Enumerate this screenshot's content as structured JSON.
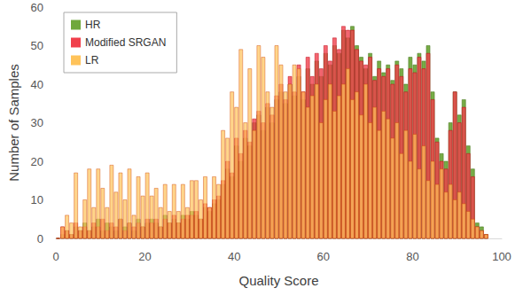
{
  "chart_data": {
    "type": "histogram",
    "x_label": "Quality Score",
    "y_label": "Number of Samples",
    "bins": [
      0,
      1,
      2,
      3,
      4,
      5,
      6,
      7,
      8,
      9,
      10,
      11,
      12,
      13,
      14,
      15,
      16,
      17,
      18,
      19,
      20,
      21,
      22,
      23,
      24,
      25,
      26,
      27,
      28,
      29,
      30,
      31,
      32,
      33,
      34,
      35,
      36,
      37,
      38,
      39,
      40,
      41,
      42,
      43,
      44,
      45,
      46,
      47,
      48,
      49,
      50,
      51,
      52,
      53,
      54,
      55,
      56,
      57,
      58,
      59,
      60,
      61,
      62,
      63,
      64,
      65,
      66,
      67,
      68,
      69,
      70,
      71,
      72,
      73,
      74,
      75,
      76,
      77,
      78,
      79,
      80,
      81,
      82,
      83,
      84,
      85,
      86,
      87,
      88,
      89,
      90,
      91,
      92,
      93,
      94,
      95,
      96,
      97
    ],
    "series": [
      {
        "name": "HR",
        "color": "#70a83c",
        "values": [
          0,
          1,
          2,
          1,
          3,
          2,
          4,
          2,
          3,
          5,
          2,
          4,
          3,
          2,
          5,
          3,
          4,
          2,
          5,
          3,
          4,
          5,
          4,
          3,
          6,
          4,
          5,
          4,
          6,
          5,
          7,
          6,
          5,
          8,
          7,
          9,
          10,
          14,
          18,
          16,
          24,
          20,
          26,
          24,
          30,
          32,
          28,
          34,
          30,
          36,
          38,
          35,
          40,
          37,
          42,
          36,
          44,
          40,
          46,
          42,
          48,
          45,
          50,
          48,
          54,
          52,
          55,
          50,
          47,
          44,
          48,
          42,
          46,
          43,
          45,
          41,
          46,
          44,
          40,
          47,
          45,
          48,
          46,
          50,
          38,
          26,
          22,
          20,
          30,
          38,
          32,
          36,
          24,
          18,
          4,
          3,
          1
        ]
      },
      {
        "name": "Modified SRGAN",
        "color": "#f0404c",
        "values": [
          0,
          3,
          2,
          1,
          4,
          2,
          3,
          2,
          4,
          3,
          5,
          2,
          4,
          3,
          5,
          2,
          4,
          3,
          4,
          3,
          5,
          4,
          5,
          3,
          5,
          4,
          6,
          4,
          5,
          6,
          6,
          7,
          5,
          9,
          8,
          10,
          11,
          15,
          20,
          17,
          26,
          22,
          28,
          25,
          31,
          33,
          30,
          35,
          32,
          37,
          40,
          36,
          42,
          38,
          45,
          38,
          47,
          42,
          48,
          44,
          50,
          46,
          52,
          49,
          55,
          54,
          54,
          49,
          46,
          45,
          47,
          41,
          44,
          42,
          44,
          40,
          45,
          42,
          38,
          44,
          43,
          47,
          44,
          48,
          36,
          25,
          20,
          18,
          28,
          38,
          30,
          34,
          22,
          16,
          3,
          2,
          1
        ]
      },
      {
        "name": "LR",
        "color": "#ffc35a",
        "values": [
          0,
          3,
          6,
          4,
          17,
          3,
          10,
          18,
          8,
          18,
          13,
          8,
          19,
          12,
          17,
          10,
          18,
          6,
          16,
          11,
          17,
          11,
          13,
          8,
          14,
          7,
          14,
          7,
          14,
          8,
          15,
          15,
          10,
          16,
          8,
          16,
          14,
          28,
          26,
          38,
          34,
          49,
          30,
          44,
          28,
          50,
          47,
          38,
          34,
          50,
          45,
          38,
          40,
          45,
          44,
          38,
          34,
          37,
          40,
          30,
          36,
          40,
          33,
          37,
          40,
          44,
          36,
          38,
          32,
          40,
          30,
          34,
          28,
          33,
          31,
          26,
          30,
          22,
          28,
          20,
          27,
          18,
          24,
          15,
          20,
          14,
          18,
          12,
          14,
          10,
          12,
          9,
          7,
          5,
          3,
          2,
          1
        ]
      }
    ],
    "xlim": [
      0,
      100
    ],
    "xticks": [
      0,
      20,
      40,
      60,
      80,
      100
    ],
    "ylim": [
      0,
      60
    ],
    "yticks": [
      0,
      10,
      20,
      30,
      40,
      50,
      60
    ],
    "grid": false,
    "legend": "upper left"
  }
}
